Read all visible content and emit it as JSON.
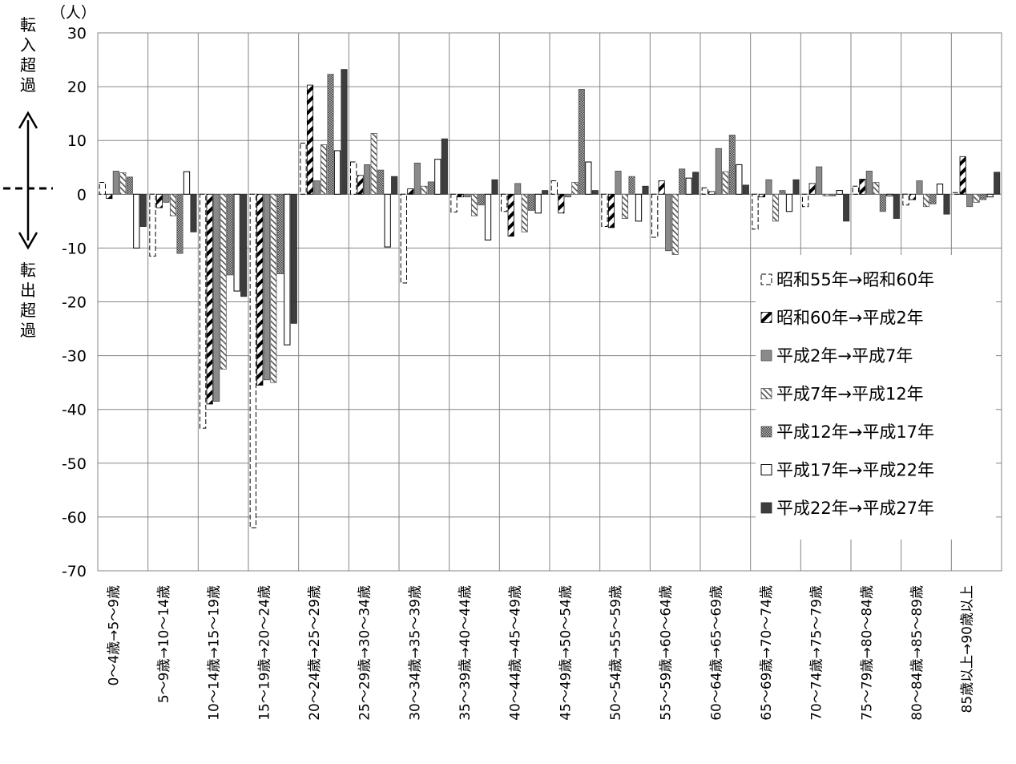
{
  "chart_data": {
    "type": "bar",
    "unit_label": "（人）",
    "side_label_in": [
      "転",
      "入",
      "超",
      "過"
    ],
    "side_label_out": [
      "転",
      "出",
      "超",
      "過"
    ],
    "ylim": [
      -70,
      30
    ],
    "yticks": [
      30,
      20,
      10,
      0,
      -10,
      -20,
      -30,
      -40,
      -50,
      -60,
      -70
    ],
    "grid": true,
    "legend_position": "right",
    "categories": [
      "0～4歳→5～9歳",
      "5～9歳→10～14歳",
      "10～14歳→15～19歳",
      "15～19歳→20～24歳",
      "20～24歳→25～29歳",
      "25～29歳→30～34歳",
      "30～34歳→35～39歳",
      "35～39歳→40～44歳",
      "40～44歳→45～49歳",
      "45～49歳→50～54歳",
      "50～54歳→55～59歳",
      "55～59歳→60～64歳",
      "60～64歳→65～69歳",
      "65～69歳→70～74歳",
      "70～74歳→75～79歳",
      "75～79歳→80～84歳",
      "80～84歳→85～89歳",
      "85歳以上→90歳以上"
    ],
    "series": [
      {
        "name": "昭和55年→昭和60年",
        "pattern": "dashed",
        "values": [
          2.2,
          -11.5,
          -43.5,
          -62,
          9.5,
          6,
          -16.5,
          -3.3,
          -3.2,
          2.5,
          -6,
          -8,
          1.2,
          -6.5,
          -2.3,
          1.5,
          -2,
          0.3
        ]
      },
      {
        "name": "昭和60年→平成2年",
        "pattern": "diagonal",
        "values": [
          -0.8,
          -2.5,
          -39,
          -35.5,
          20.3,
          3.5,
          1,
          -0.5,
          -7.8,
          -3.5,
          -6.2,
          2.5,
          0.5,
          -0.5,
          2,
          2.8,
          -1,
          7
        ]
      },
      {
        "name": "平成2年→平成7年",
        "pattern": "gray",
        "values": [
          4.3,
          -1.5,
          -38.5,
          -34.5,
          2.5,
          5.5,
          5.8,
          -0.5,
          2,
          -0.5,
          4.3,
          -10.5,
          8.5,
          2.7,
          5.1,
          4.3,
          2.5,
          -2.3
        ]
      },
      {
        "name": "平成7年→平成12年",
        "pattern": "hatch",
        "values": [
          4,
          -4,
          -32.5,
          -35,
          9.2,
          11.3,
          1.5,
          -4,
          -7,
          2.2,
          -4.5,
          -11.2,
          4.2,
          -5,
          -0.3,
          2.2,
          -2.3,
          -1.5
        ]
      },
      {
        "name": "平成12年→平成17年",
        "pattern": "dots",
        "values": [
          3.2,
          -11,
          -15,
          -14.8,
          22.3,
          4.5,
          2.3,
          -2,
          -3,
          19.5,
          3.3,
          4.7,
          11,
          0.7,
          -0.3,
          -3.2,
          -1.8,
          -1
        ]
      },
      {
        "name": "平成17年→平成22年",
        "pattern": "white",
        "values": [
          -10,
          4.2,
          -18,
          -28,
          8.1,
          -9.8,
          6.5,
          -8.5,
          -3.5,
          6,
          -5,
          3,
          5.5,
          -3.2,
          0.7,
          -0.3,
          1.9,
          -0.5
        ]
      },
      {
        "name": "平成22年→平成27年",
        "pattern": "black",
        "values": [
          -6,
          -7,
          -19,
          -24,
          23.2,
          3.3,
          10.3,
          2.7,
          0.7,
          0.7,
          1.5,
          4.1,
          1.7,
          2.7,
          -5,
          -4.5,
          -3.7,
          4.1
        ]
      }
    ]
  }
}
